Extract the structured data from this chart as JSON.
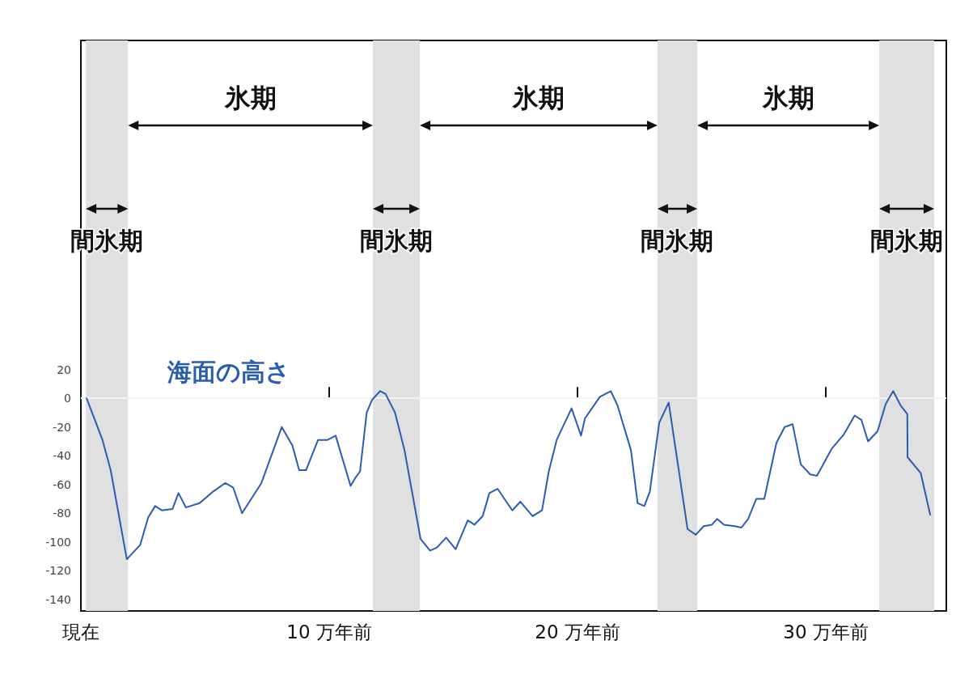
{
  "chart_data": {
    "type": "line",
    "x": [
      0.23,
      0.87,
      1.2,
      1.85,
      2.39,
      2.71,
      2.99,
      3.26,
      3.69,
      3.93,
      4.23,
      4.78,
      5.32,
      5.81,
      6.13,
      6.49,
      7.27,
      8.09,
      8.52,
      8.79,
      9.07,
      9.55,
      9.93,
      10.26,
      10.86,
      11.07,
      11.24,
      11.51,
      11.73,
      12.05,
      12.27,
      12.65,
      13.03,
      13.68,
      14.06,
      14.33,
      14.71,
      15.09,
      15.58,
      15.85,
      16.18,
      16.45,
      16.78,
      17.37,
      17.7,
      18.19,
      18.57,
      18.84,
      19.16,
      19.76,
      20.14,
      20.3,
      20.9,
      21.34,
      21.61,
      22.15,
      22.42,
      22.69,
      22.91,
      23.29,
      23.67,
      24.43,
      24.76,
      25.08,
      25.41,
      25.62,
      25.9,
      26.33,
      26.6,
      26.87,
      27.2,
      27.52,
      28.01,
      28.34,
      28.66,
      28.99,
      29.37,
      29.64,
      30.24,
      30.73,
      31.16,
      31.43,
      31.7,
      32.08,
      32.41,
      32.71,
      33.01,
      33.28,
      33.29,
      33.82,
      34.2
    ],
    "series": [
      {
        "name": "海面の高さ",
        "color": "#2a5db0",
        "values": [
          0,
          -29,
          -50,
          -112,
          -102,
          -83,
          -75,
          -78,
          -77,
          -66,
          -76,
          -73,
          -65,
          -59,
          -62,
          -80,
          -59,
          -20,
          -33,
          -50,
          -50,
          -29,
          -29,
          -26,
          -61,
          -55,
          -51,
          -10,
          -1,
          5,
          3,
          -10,
          -36,
          -98,
          -106,
          -104,
          -97,
          -105,
          -85,
          -88,
          -82,
          -66,
          -63,
          -78,
          -72,
          -82,
          -78,
          -51,
          -29,
          -7,
          -26,
          -14,
          1,
          5,
          -5,
          -36,
          -73,
          -75,
          -65,
          -17,
          -3,
          -91,
          -95,
          -89,
          -88,
          -84,
          -88,
          -89,
          -90,
          -84,
          -70,
          -70,
          -31,
          -20,
          -18,
          -46,
          -53,
          -54,
          -35,
          -25,
          -12,
          -15,
          -30,
          -23,
          -4,
          5,
          -5,
          -11,
          -41,
          -52,
          -81
        ]
      }
    ],
    "xlim": [
      0,
      34.85
    ],
    "xticks": [
      {
        "value": 0,
        "label": "現在"
      },
      {
        "value": 10,
        "label": "10 万年前"
      },
      {
        "value": 20,
        "label": "20 万年前"
      },
      {
        "value": 30,
        "label": "30 万年前"
      }
    ],
    "ylim": [
      -148,
      249
    ],
    "yticks": [
      -140,
      -120,
      -100,
      -80,
      -60,
      -40,
      -20,
      0,
      20
    ],
    "grid": false,
    "marker": "none",
    "line_style": "solid",
    "ref_lines": [
      {
        "axis": "y",
        "value": 0,
        "color": "#f2f2f2"
      }
    ],
    "bands": [
      {
        "axis": "x",
        "from": 0.2,
        "to": 1.9,
        "label": "間氷期",
        "color": "#e0e0e0"
      },
      {
        "axis": "x",
        "from": 11.76,
        "to": 13.65,
        "label": "間氷期",
        "color": "#e0e0e0"
      },
      {
        "axis": "x",
        "from": 23.22,
        "to": 24.82,
        "label": "間氷期",
        "color": "#e0e0e0"
      },
      {
        "axis": "x",
        "from": 32.15,
        "to": 34.36,
        "label": "間氷期",
        "color": "#e0e0e0"
      }
    ],
    "annotations": [
      "氷期",
      "氷期",
      "氷期"
    ]
  }
}
